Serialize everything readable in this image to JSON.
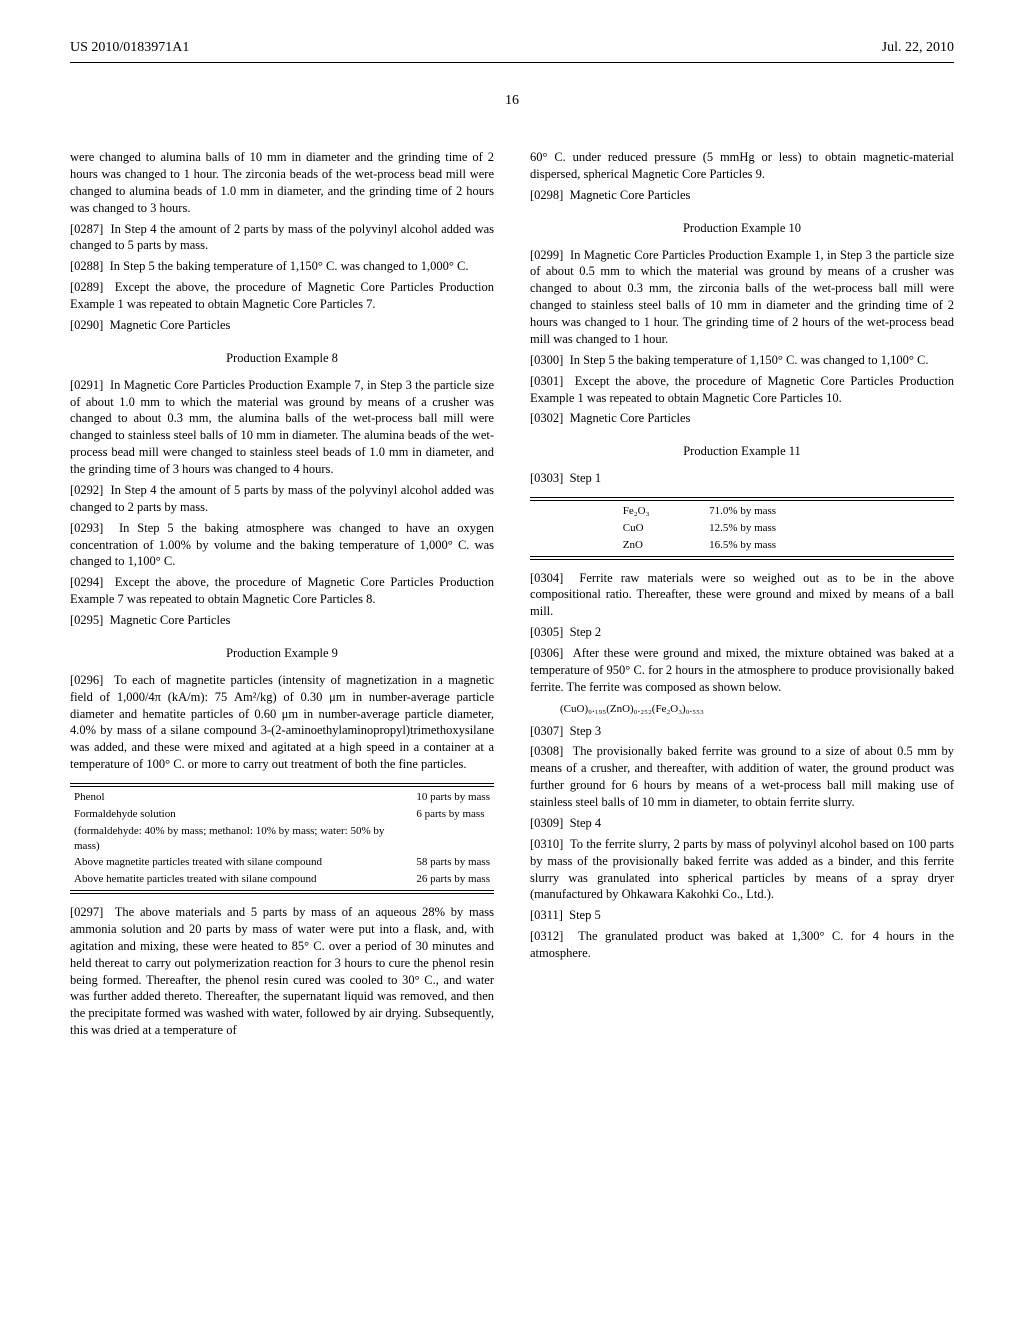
{
  "header": {
    "left": "US 2010/0183971A1",
    "right": "Jul. 22, 2010"
  },
  "page_number": "16",
  "left_col": {
    "p0": "were changed to alumina balls of 10 mm in diameter and the grinding time of 2 hours was changed to 1 hour. The zirconia beads of the wet-process bead mill were changed to alumina beads of 1.0 mm in diameter, and the grinding time of 2 hours was changed to 3 hours.",
    "p287_num": "[0287]",
    "p287": "In Step 4 the amount of 2 parts by mass of the polyvinyl alcohol added was changed to 5 parts by mass.",
    "p288_num": "[0288]",
    "p288": "In Step 5 the baking temperature of 1,150° C. was changed to 1,000° C.",
    "p289_num": "[0289]",
    "p289": "Except the above, the procedure of Magnetic Core Particles Production Example 1 was repeated to obtain Magnetic Core Particles 7.",
    "p290_num": "[0290]",
    "p290": "Magnetic Core Particles",
    "heading8": "Production Example 8",
    "p291_num": "[0291]",
    "p291": "In Magnetic Core Particles Production Example 7, in Step 3 the particle size of about 1.0 mm to which the material was ground by means of a crusher was changed to about 0.3 mm, the alumina balls of the wet-process ball mill were changed to stainless steel balls of 10 mm in diameter. The alumina beads of the wet-process bead mill were changed to stainless steel beads of 1.0 mm in diameter, and the grinding time of 3 hours was changed to 4 hours.",
    "p292_num": "[0292]",
    "p292": "In Step 4 the amount of 5 parts by mass of the polyvinyl alcohol added was changed to 2 parts by mass.",
    "p293_num": "[0293]",
    "p293": "In Step 5 the baking atmosphere was changed to have an oxygen concentration of 1.00% by volume and the baking temperature of 1,000° C. was changed to 1,100° C.",
    "p294_num": "[0294]",
    "p294": "Except the above, the procedure of Magnetic Core Particles Production Example 7 was repeated to obtain Magnetic Core Particles 8.",
    "p295_num": "[0295]",
    "p295": "Magnetic Core Particles",
    "heading9": "Production Example 9",
    "p296_num": "[0296]",
    "p296": "To each of magnetite particles (intensity of magnetization in a magnetic field of 1,000/4π (kA/m): 75 Am²/kg) of 0.30 μm in number-average particle diameter and hematite particles of 0.60 μm in number-average particle diameter, 4.0% by mass of a silane compound 3-(2-aminoethylaminopropyl)trimethoxysilane was added, and these were mixed and agitated at a high speed in a container at a temperature of 100° C. or more to carry out treatment of both the fine particles.",
    "mat_table": {
      "rows": [
        [
          "Phenol",
          "10 parts by mass"
        ],
        [
          "Formaldehyde solution",
          "6 parts by mass"
        ],
        [
          "(formaldehyde: 40% by mass; methanol: 10% by mass; water: 50% by mass)",
          ""
        ],
        [
          "Above magnetite particles treated with silane compound",
          "58 parts by mass"
        ],
        [
          "Above hematite particles treated with silane compound",
          "26 parts by mass"
        ]
      ]
    },
    "p297_num": "[0297]",
    "p297": "The above materials and 5 parts by mass of an aqueous 28% by mass ammonia solution and 20 parts by mass of water were put into a flask, and, with agitation and mixing, these were heated to 85° C. over a period of 30 minutes and held thereat to carry out polymerization reaction for 3 hours to cure the phenol resin being formed. Thereafter, the phenol resin cured was cooled to 30° C., and water was further added thereto. Thereafter, the supernatant liquid was removed, and then the precipitate formed was washed with water, followed by air drying. Subsequently, this was dried at a temperature of"
  },
  "right_col": {
    "p0": "60° C. under reduced pressure (5 mmHg or less) to obtain magnetic-material dispersed, spherical Magnetic Core Particles 9.",
    "p298_num": "[0298]",
    "p298": "Magnetic Core Particles",
    "heading10": "Production Example 10",
    "p299_num": "[0299]",
    "p299": "In Magnetic Core Particles Production Example 1, in Step 3 the particle size of about 0.5 mm to which the material was ground by means of a crusher was changed to about 0.3 mm, the zirconia balls of the wet-process ball mill were changed to stainless steel balls of 10 mm in diameter and the grinding time of 2 hours was changed to 1 hour. The grinding time of 2 hours of the wet-process bead mill was changed to 1 hour.",
    "p300_num": "[0300]",
    "p300": "In Step 5 the baking temperature of 1,150° C. was changed to 1,100° C.",
    "p301_num": "[0301]",
    "p301": "Except the above, the procedure of Magnetic Core Particles Production Example 1 was repeated to obtain Magnetic Core Particles 10.",
    "p302_num": "[0302]",
    "p302": "Magnetic Core Particles",
    "heading11": "Production Example 11",
    "p303_num": "[0303]",
    "p303": "Step 1",
    "comp_table": {
      "rows": [
        [
          "Fe₂O₃",
          "71.0% by mass"
        ],
        [
          "CuO",
          "12.5% by mass"
        ],
        [
          "ZnO",
          "16.5% by mass"
        ]
      ]
    },
    "p304_num": "[0304]",
    "p304": "Ferrite raw materials were so weighed out as to be in the above compositional ratio. Thereafter, these were ground and mixed by means of a ball mill.",
    "p305_num": "[0305]",
    "p305": "Step 2",
    "p306_num": "[0306]",
    "p306": "After these were ground and mixed, the mixture obtained was baked at a temperature of 950° C. for 2 hours in the atmosphere to produce provisionally baked ferrite. The ferrite was composed as shown below.",
    "formula": "(CuO)₀.₁₉₅(ZnO)₀.₂₅₂(Fe₂O₃)₀.₅₅₃",
    "p307_num": "[0307]",
    "p307": "Step 3",
    "p308_num": "[0308]",
    "p308": "The provisionally baked ferrite was ground to a size of about 0.5 mm by means of a crusher, and thereafter, with addition of water, the ground product was further ground for 6 hours by means of a wet-process ball mill making use of stainless steel balls of 10 mm in diameter, to obtain ferrite slurry.",
    "p309_num": "[0309]",
    "p309": "Step 4",
    "p310_num": "[0310]",
    "p310": "To the ferrite slurry, 2 parts by mass of polyvinyl alcohol based on 100 parts by mass of the provisionally baked ferrite was added as a binder, and this ferrite slurry was granulated into spherical particles by means of a spray dryer (manufactured by Ohkawara Kakohki Co., Ltd.).",
    "p311_num": "[0311]",
    "p311": "Step 5",
    "p312_num": "[0312]",
    "p312": "The granulated product was baked at 1,300° C. for 4 hours in the atmosphere."
  }
}
